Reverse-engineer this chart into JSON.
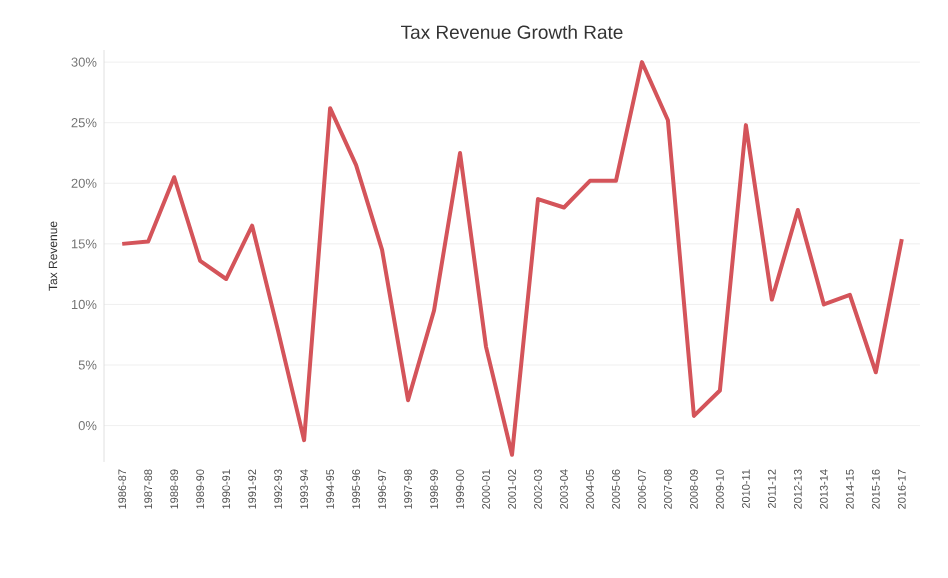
{
  "chart_data": {
    "type": "line",
    "title": "Tax Revenue Growth Rate",
    "ylabel": "Tax Revenue",
    "categories": [
      "1986-87",
      "1987-88",
      "1988-89",
      "1989-90",
      "1990-91",
      "1991-92",
      "1992-93",
      "1993-94",
      "1994-95",
      "1995-96",
      "1996-97",
      "1997-98",
      "1998-99",
      "1999-00",
      "2000-01",
      "2001-02",
      "2002-03",
      "2003-04",
      "2004-05",
      "2005-06",
      "2006-07",
      "2007-08",
      "2008-09",
      "2009-10",
      "2010-11",
      "2011-12",
      "2012-13",
      "2013-14",
      "2014-15",
      "2015-16",
      "2016-17"
    ],
    "series": [
      {
        "color": "#d4545a",
        "values": [
          15.0,
          15.2,
          20.5,
          13.6,
          12.1,
          16.5,
          7.8,
          -1.2,
          26.2,
          21.5,
          14.5,
          2.1,
          9.5,
          22.5,
          6.5,
          -2.4,
          18.7,
          18.0,
          20.2,
          20.2,
          30.0,
          25.2,
          0.8,
          2.9,
          24.8,
          10.4,
          17.8,
          10.0,
          10.8,
          4.4,
          15.4
        ]
      }
    ],
    "ylim": [
      -3,
      31
    ],
    "yticks": [
      {
        "value": 0,
        "label": "0%"
      },
      {
        "value": 5,
        "label": "5%"
      },
      {
        "value": 10,
        "label": "10%"
      },
      {
        "value": 15,
        "label": "15%"
      },
      {
        "value": 20,
        "label": "20%"
      },
      {
        "value": 25,
        "label": "25%"
      },
      {
        "value": 30,
        "label": "30%"
      }
    ],
    "grid": "y",
    "marker": "none",
    "line_style": "solid"
  }
}
